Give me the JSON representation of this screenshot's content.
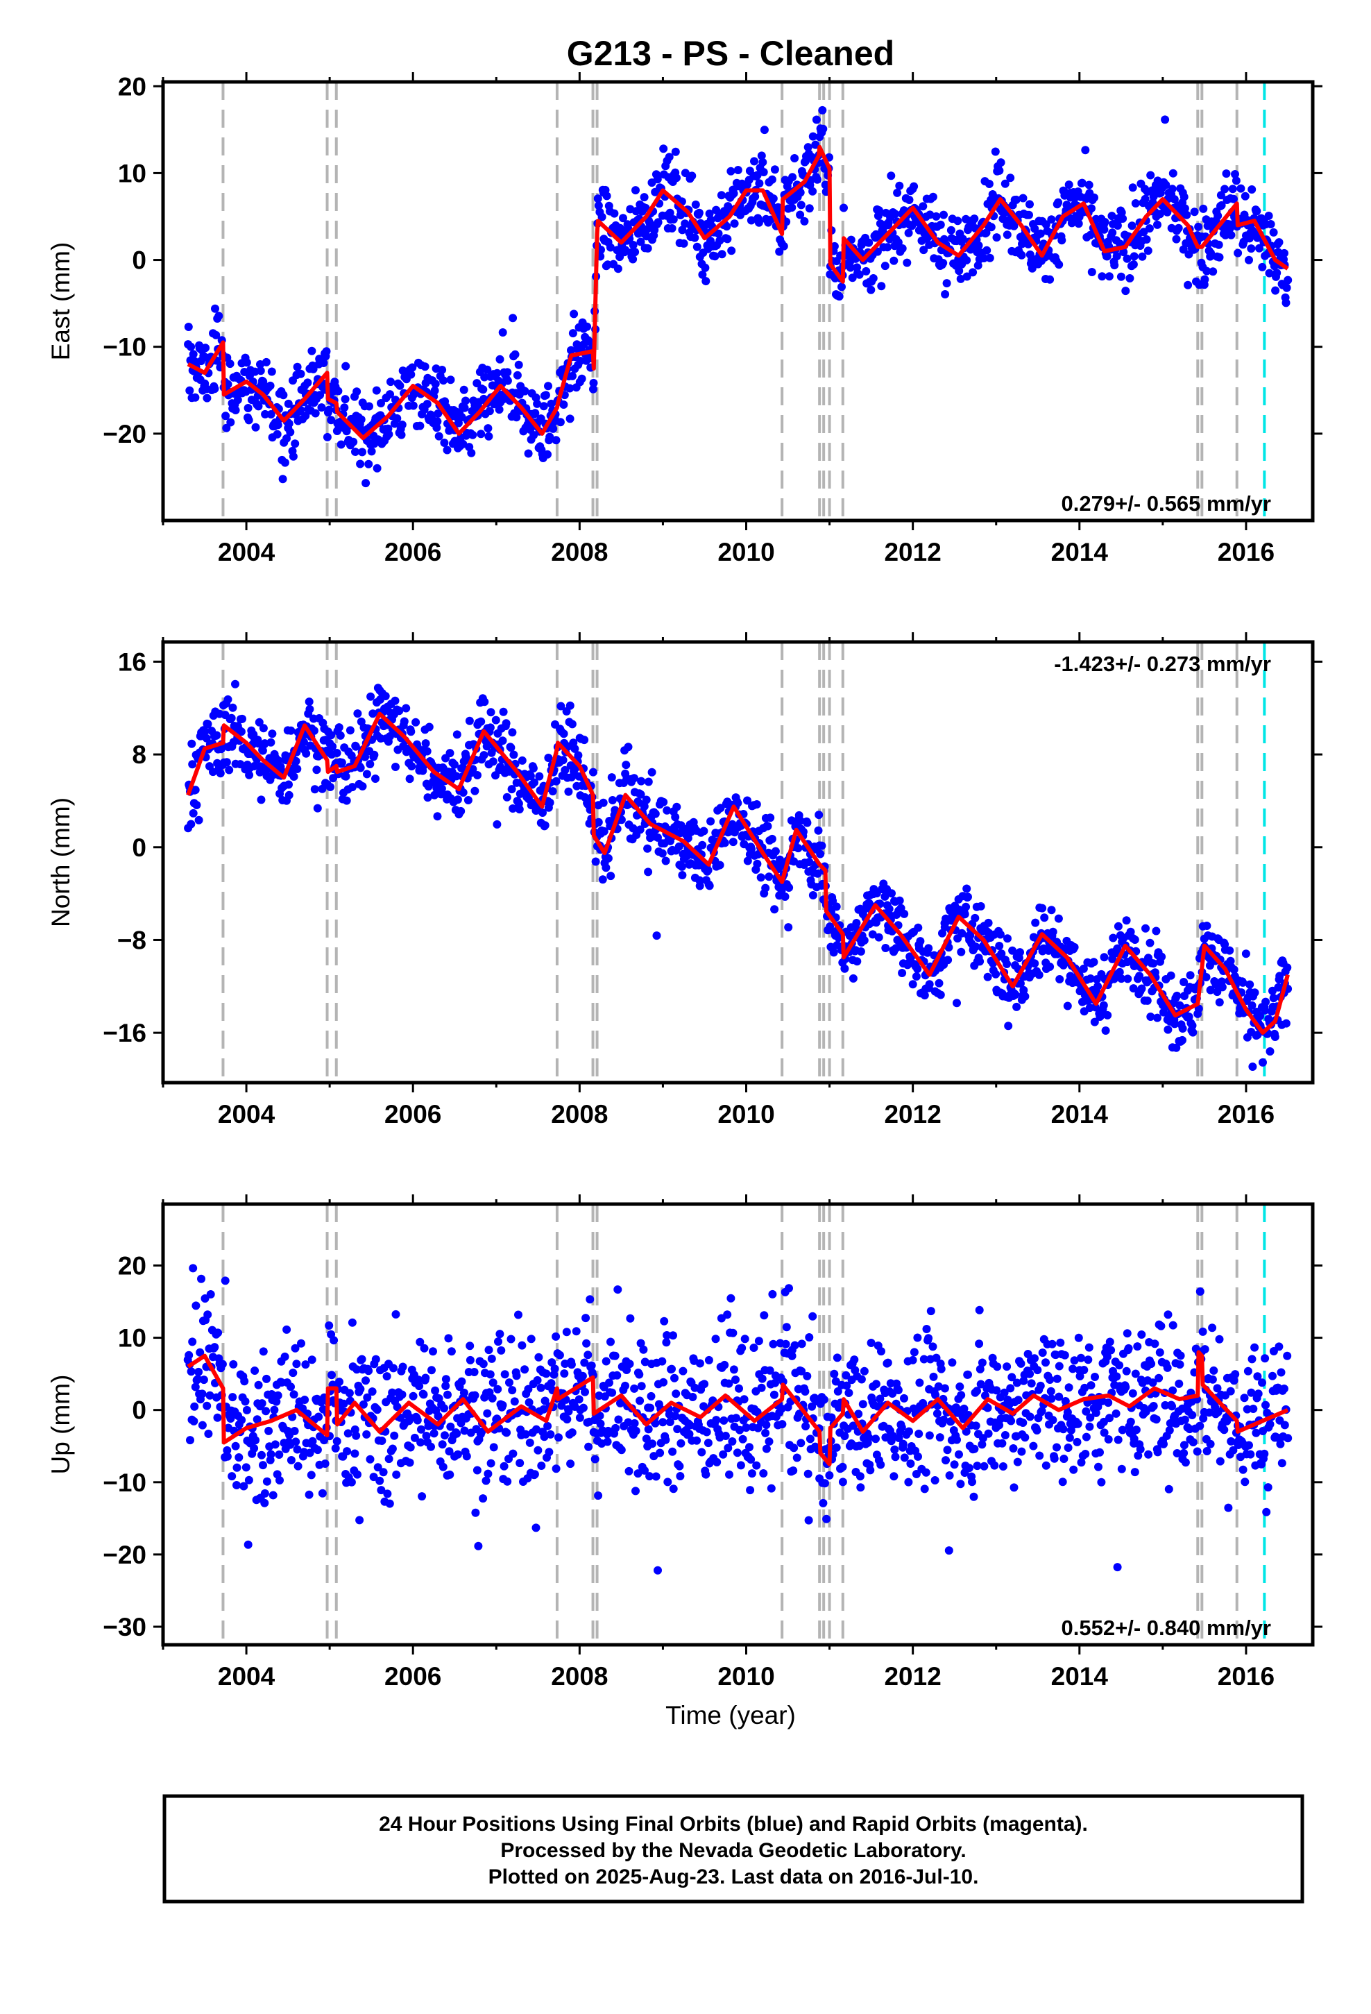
{
  "chart_data": {
    "type": "scatter",
    "title": "G213  - PS - Cleaned",
    "xlabel": "Time (year)",
    "xlim": [
      2003.0,
      2016.8
    ],
    "xticks": [
      2004,
      2006,
      2008,
      2010,
      2012,
      2014,
      2016
    ],
    "xtick_labels": [
      "2004",
      "2006",
      "2008",
      "2010",
      "2012",
      "2014",
      "2016"
    ],
    "point_color": "#0000ff",
    "fit_color": "#ff0000",
    "event_line_color": "#b4b4b4",
    "last_data_line_color": "#00e6e6",
    "event_lines": [
      2003.72,
      2004.97,
      2005.08,
      2007.73,
      2008.16,
      2008.21,
      2010.43,
      2010.88,
      2010.93,
      2011.0,
      2011.16,
      2015.42,
      2015.47,
      2015.89
    ],
    "last_data_line": 2016.22,
    "panels": [
      {
        "name": "east",
        "ylabel": "East (mm)",
        "ylim": [
          -30,
          20.5
        ],
        "yticks": [
          20,
          10,
          0,
          -10,
          -20
        ],
        "ytick_labels": [
          "20",
          "10",
          "0",
          "−10",
          "−20"
        ],
        "rate_label": "0.279+/- 0.565 mm/yr",
        "rate_position": "bottom-right",
        "fit": {
          "x": [
            2003.3,
            2003.5,
            2003.72,
            2003.73,
            2004.0,
            2004.2,
            2004.45,
            2004.7,
            2004.97,
            2004.98,
            2005.08,
            2005.09,
            2005.4,
            2005.7,
            2006.0,
            2006.3,
            2006.55,
            2006.8,
            2007.05,
            2007.3,
            2007.55,
            2007.73,
            2007.74,
            2007.9,
            2008.16,
            2008.17,
            2008.21,
            2008.22,
            2008.5,
            2008.8,
            2009.0,
            2009.3,
            2009.5,
            2009.8,
            2010.0,
            2010.2,
            2010.43,
            2010.44,
            2010.7,
            2010.87,
            2010.88,
            2011.0,
            2011.01,
            2011.16,
            2011.17,
            2011.4,
            2011.7,
            2012.0,
            2012.3,
            2012.55,
            2012.85,
            2013.05,
            2013.3,
            2013.55,
            2013.8,
            2014.05,
            2014.3,
            2014.55,
            2014.8,
            2015.0,
            2015.3,
            2015.42,
            2015.47,
            2015.89,
            2015.9,
            2016.1,
            2016.35,
            2016.5
          ],
          "y": [
            -12,
            -13,
            -9.5,
            -15.5,
            -14,
            -15.5,
            -18.5,
            -16,
            -13,
            -16,
            -16.5,
            -17.5,
            -20.5,
            -18,
            -14.5,
            -16.5,
            -20,
            -17.5,
            -14.5,
            -17,
            -20,
            -17,
            -16.5,
            -11,
            -10.5,
            -12.5,
            3,
            4.5,
            2,
            5,
            8,
            5.5,
            2.5,
            5,
            8,
            8,
            3,
            7,
            9,
            12,
            13,
            10.5,
            -0.5,
            -2.5,
            2.5,
            0,
            3,
            6,
            2,
            0.5,
            4,
            7,
            4,
            0.5,
            5,
            6.5,
            1,
            1.5,
            5,
            7,
            4,
            1.5,
            1.5,
            6.5,
            4,
            4.5,
            0,
            -1
          ]
        },
        "scatter_note": "daily positions scattered about the fit"
      },
      {
        "name": "north",
        "ylabel": "North (mm)",
        "ylim": [
          -20.3,
          17.7
        ],
        "yticks": [
          16,
          8,
          0,
          -8,
          -16
        ],
        "ytick_labels": [
          "16",
          "8",
          "0",
          "−8",
          "−16"
        ],
        "rate_label": "-1.423+/- 0.273 mm/yr",
        "rate_position": "top-right",
        "fit": {
          "x": [
            2003.3,
            2003.5,
            2003.72,
            2003.73,
            2004.0,
            2004.2,
            2004.45,
            2004.7,
            2004.97,
            2004.98,
            2005.08,
            2005.09,
            2005.3,
            2005.6,
            2005.9,
            2006.25,
            2006.55,
            2006.85,
            2007.25,
            2007.55,
            2007.73,
            2007.74,
            2008.0,
            2008.16,
            2008.17,
            2008.3,
            2008.55,
            2008.85,
            2009.25,
            2009.55,
            2009.85,
            2010.2,
            2010.43,
            2010.6,
            2010.88,
            2010.95,
            2010.96,
            2011.16,
            2011.17,
            2011.55,
            2011.85,
            2012.2,
            2012.55,
            2012.85,
            2013.2,
            2013.55,
            2013.85,
            2014.2,
            2014.55,
            2014.85,
            2015.15,
            2015.42,
            2015.5,
            2015.75,
            2015.89,
            2016.0,
            2016.2,
            2016.35,
            2016.5
          ],
          "y": [
            4.5,
            8.5,
            9,
            10.5,
            9,
            7.5,
            6,
            10.5,
            7.5,
            6.5,
            7,
            6.5,
            7,
            11.5,
            9.5,
            6.5,
            5,
            10,
            6.5,
            3.5,
            8.5,
            9,
            7,
            4.5,
            1,
            -0.5,
            4.5,
            2,
            0.5,
            -1.5,
            3.5,
            -0.5,
            -3,
            1.5,
            -1.5,
            -2,
            -5.5,
            -7.5,
            -9.5,
            -5,
            -7.5,
            -11,
            -6,
            -8,
            -12,
            -7.5,
            -9.5,
            -13.5,
            -8.5,
            -11,
            -14.5,
            -13.5,
            -8.5,
            -10.5,
            -12.5,
            -14,
            -16,
            -15,
            -11
          ]
        },
        "scatter_note": "daily positions scattered about the fit"
      },
      {
        "name": "up",
        "ylabel": "Up (mm)",
        "ylim": [
          -32.5,
          28.5
        ],
        "yticks": [
          20,
          10,
          0,
          -10,
          -20,
          -30
        ],
        "ytick_labels": [
          "20",
          "10",
          "0",
          "−10",
          "−20",
          "−30"
        ],
        "rate_label": "0.552+/- 0.840 mm/yr",
        "rate_position": "bottom-right",
        "fit": {
          "x": [
            2003.3,
            2003.5,
            2003.72,
            2003.73,
            2004.0,
            2004.3,
            2004.6,
            2004.97,
            2004.98,
            2005.08,
            2005.09,
            2005.3,
            2005.6,
            2005.95,
            2006.3,
            2006.6,
            2006.9,
            2007.3,
            2007.6,
            2007.73,
            2007.74,
            2008.16,
            2008.17,
            2008.5,
            2008.8,
            2009.1,
            2009.45,
            2009.75,
            2010.1,
            2010.43,
            2010.44,
            2010.88,
            2010.89,
            2011.0,
            2011.01,
            2011.16,
            2011.17,
            2011.4,
            2011.7,
            2012.0,
            2012.3,
            2012.6,
            2012.9,
            2013.2,
            2013.45,
            2013.75,
            2014.05,
            2014.35,
            2014.6,
            2014.9,
            2015.2,
            2015.42,
            2015.43,
            2015.47,
            2015.48,
            2015.89,
            2015.9,
            2016.2,
            2016.5
          ],
          "y": [
            6,
            7.5,
            3,
            -4.5,
            -2.5,
            -1.5,
            0,
            -3.5,
            3,
            3,
            -2,
            1,
            -3,
            1,
            -2,
            1.5,
            -3,
            0.5,
            -1.5,
            3,
            1.5,
            4.5,
            -0.5,
            2,
            -2,
            1,
            -1,
            2,
            -1.5,
            1.5,
            3.5,
            -3,
            -6,
            -7.5,
            -2.5,
            -0.5,
            1.5,
            -3,
            1,
            -1.5,
            1.5,
            -2.5,
            1.5,
            -0.5,
            2,
            0,
            1.5,
            2,
            0.5,
            3,
            1.5,
            2,
            8,
            7.5,
            3.5,
            -1.5,
            -3,
            -1.5,
            0
          ]
        },
        "scatter_note": "daily positions scattered about the fit"
      }
    ]
  },
  "caption": {
    "line1": "24 Hour Positions Using Final Orbits (blue) and Rapid Orbits (magenta).",
    "line2": "Processed by the Nevada Geodetic Laboratory.",
    "line3": "Plotted on 2025-Aug-23. Last data on 2016-Jul-10."
  }
}
